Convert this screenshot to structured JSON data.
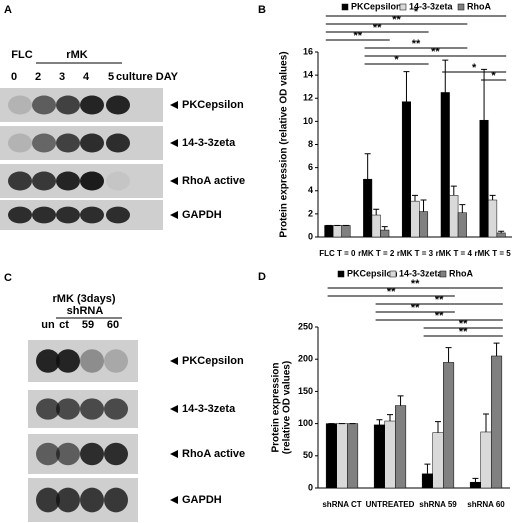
{
  "panel_a": {
    "letter": "A",
    "groups": [
      "FLC",
      "rMK"
    ],
    "lanes": [
      "0",
      "2",
      "3",
      "4",
      "5",
      "culture DAY"
    ],
    "bands": [
      "PKCepsilon",
      "14-3-3zeta",
      "RhoA active",
      "GAPDH"
    ]
  },
  "panel_c": {
    "letter": "C",
    "condition": "rMK (3days)",
    "group": "shRNA",
    "lanes": [
      "un",
      "ct",
      "59",
      "60"
    ],
    "bands": [
      "PKCepsilon",
      "14-3-3zeta",
      "RhoA active",
      "GAPDH"
    ]
  },
  "chart_data": [
    {
      "type": "bar",
      "letter": "B",
      "y_label": [
        "Protein expression (relative OD values)"
      ],
      "categories": [
        "FLC T = 0",
        "rMK T = 2",
        "rMK T = 3",
        "rMK T = 4",
        "rMK T = 5"
      ],
      "series": [
        {
          "name": "PKCepsilon",
          "color": "#000000",
          "values": [
            1,
            5,
            11.7,
            12.5,
            10.1
          ],
          "errors": [
            0,
            2.2,
            2.6,
            2.8,
            4.4
          ]
        },
        {
          "name": "14-3-3zeta",
          "color": "#d9d9d9",
          "values": [
            1,
            1.9,
            3.1,
            3.6,
            3.2
          ],
          "errors": [
            0,
            0.5,
            0.5,
            0.8,
            0.4
          ]
        },
        {
          "name": "RhoA",
          "color": "#808080",
          "values": [
            1,
            0.6,
            2.2,
            2.1,
            0.35
          ],
          "errors": [
            0,
            0.3,
            1,
            0.7,
            0.15
          ]
        }
      ],
      "ylim": [
        0,
        16
      ],
      "yticks": [
        0,
        2,
        4,
        6,
        8,
        10,
        12,
        14,
        16
      ],
      "legend": "top",
      "annotations": [
        "*",
        "**",
        "**",
        "**",
        "**",
        "**",
        "*",
        "*",
        "*"
      ]
    },
    {
      "type": "bar",
      "letter": "D",
      "y_label": [
        "Protein expression",
        "(relative OD values)"
      ],
      "categories": [
        "shRNA CT",
        "UNTREATED",
        "shRNA 59",
        "shRNA 60"
      ],
      "series": [
        {
          "name": "PKCepsilon",
          "color": "#000000",
          "values": [
            100,
            98,
            22,
            9
          ],
          "errors": [
            0,
            8,
            15,
            6
          ]
        },
        {
          "name": "14-3-3zeta",
          "color": "#d9d9d9",
          "values": [
            100,
            104,
            86,
            87
          ],
          "errors": [
            0,
            10,
            17,
            28
          ]
        },
        {
          "name": "RhoA",
          "color": "#808080",
          "values": [
            100,
            128,
            195,
            205
          ],
          "errors": [
            0,
            15,
            23,
            20
          ]
        }
      ],
      "ylim": [
        0,
        250
      ],
      "yticks": [
        0,
        50,
        100,
        150,
        200,
        250
      ],
      "legend": "top",
      "annotations": [
        "**",
        "**",
        "**",
        "**",
        "**",
        "**",
        "**"
      ]
    }
  ]
}
